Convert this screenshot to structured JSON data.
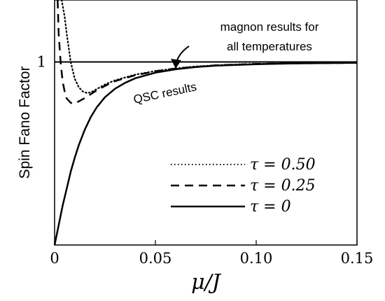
{
  "chart_data": {
    "type": "line",
    "xlabel": "μ/J",
    "ylabel": "Spin Fano Factor",
    "xlim": [
      0,
      0.15
    ],
    "ylim": [
      0.35,
      1.22
    ],
    "x_ticks": [
      {
        "value": 0,
        "label": "0"
      },
      {
        "value": 0.05,
        "label": "0.05"
      },
      {
        "value": 0.1,
        "label": "0.10"
      },
      {
        "value": 0.15,
        "label": "0.15"
      }
    ],
    "y_ticks": [
      {
        "value": 1,
        "label": "1"
      }
    ],
    "grid": false,
    "legend_position": "lower-right",
    "series": [
      {
        "name": "τ = 0.50",
        "style": "dotted",
        "points": [
          [
            0.0035,
            1.22
          ],
          [
            0.005,
            1.16
          ],
          [
            0.006,
            1.1
          ],
          [
            0.007,
            1.05
          ],
          [
            0.008,
            1.0
          ],
          [
            0.01,
            0.94
          ],
          [
            0.012,
            0.91
          ],
          [
            0.014,
            0.895
          ],
          [
            0.016,
            0.89
          ],
          [
            0.018,
            0.892
          ],
          [
            0.02,
            0.9
          ],
          [
            0.025,
            0.92
          ],
          [
            0.03,
            0.935
          ],
          [
            0.04,
            0.955
          ],
          [
            0.05,
            0.968
          ],
          [
            0.06,
            0.977
          ],
          [
            0.07,
            0.984
          ],
          [
            0.08,
            0.988
          ],
          [
            0.09,
            0.991
          ],
          [
            0.1,
            0.993
          ],
          [
            0.12,
            0.995
          ],
          [
            0.15,
            0.997
          ]
        ]
      },
      {
        "name": "τ = 0.25",
        "style": "dashed",
        "points": [
          [
            0.0015,
            1.22
          ],
          [
            0.002,
            1.1
          ],
          [
            0.003,
            1.0
          ],
          [
            0.004,
            0.93
          ],
          [
            0.005,
            0.895
          ],
          [
            0.006,
            0.87
          ],
          [
            0.008,
            0.855
          ],
          [
            0.009,
            0.852
          ],
          [
            0.01,
            0.853
          ],
          [
            0.012,
            0.86
          ],
          [
            0.015,
            0.872
          ],
          [
            0.02,
            0.895
          ],
          [
            0.025,
            0.915
          ],
          [
            0.03,
            0.932
          ],
          [
            0.04,
            0.953
          ],
          [
            0.05,
            0.967
          ],
          [
            0.06,
            0.977
          ],
          [
            0.08,
            0.988
          ],
          [
            0.1,
            0.993
          ],
          [
            0.12,
            0.995
          ],
          [
            0.15,
            0.997
          ]
        ]
      },
      {
        "name": "τ = 0",
        "style": "solid",
        "points": [
          [
            0,
            0.35
          ],
          [
            0.002,
            0.42
          ],
          [
            0.004,
            0.49
          ],
          [
            0.006,
            0.55
          ],
          [
            0.008,
            0.61
          ],
          [
            0.01,
            0.66
          ],
          [
            0.012,
            0.705
          ],
          [
            0.015,
            0.76
          ],
          [
            0.018,
            0.805
          ],
          [
            0.021,
            0.84
          ],
          [
            0.025,
            0.875
          ],
          [
            0.03,
            0.905
          ],
          [
            0.035,
            0.926
          ],
          [
            0.04,
            0.942
          ],
          [
            0.05,
            0.962
          ],
          [
            0.06,
            0.974
          ],
          [
            0.07,
            0.982
          ],
          [
            0.08,
            0.987
          ],
          [
            0.1,
            0.992
          ],
          [
            0.12,
            0.995
          ],
          [
            0.15,
            0.997
          ]
        ]
      },
      {
        "name": "",
        "style": "solid-reference",
        "points": [
          [
            0,
            1
          ],
          [
            0.15,
            1
          ]
        ]
      }
    ],
    "legend": [
      {
        "label": "τ = 0.50",
        "style": "dotted"
      },
      {
        "label": "τ = 0.25",
        "style": "dashed"
      },
      {
        "label": "τ = 0",
        "style": "solid"
      }
    ],
    "annotations": [
      {
        "text_lines": [
          "magnon results for",
          "all temperatures"
        ],
        "arrow_to": [
          0.06,
          1.0
        ]
      },
      {
        "text": "QSC results",
        "rotation_deg": -12
      }
    ]
  }
}
